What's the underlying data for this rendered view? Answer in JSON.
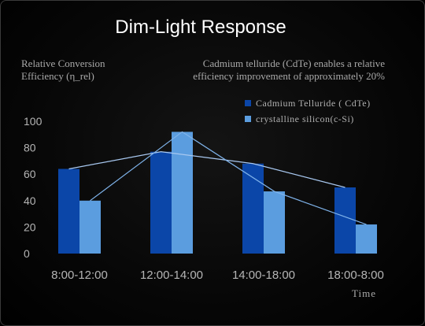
{
  "chart_data": {
    "type": "bar",
    "title": "Dim-Light Response",
    "ylabel": "Relative Conversion Efficiency (η_rel)",
    "ylabel_lines": [
      "Relative Conversion",
      "Efficiency (η_rel)"
    ],
    "xlabel": "Time",
    "annotation_lines": [
      "Cadmium telluride (CdTe) enables a relative",
      "efficiency improvement of approximately 20%"
    ],
    "categories": [
      "8:00-12:00",
      "12:00-14:00",
      "14:00-18:00",
      "18:00-8:00"
    ],
    "ylim": [
      0,
      100
    ],
    "yticks": [
      0,
      20,
      40,
      60,
      80,
      100
    ],
    "grid": false,
    "legend_position": "top-right",
    "series": [
      {
        "name": "Cadmium Telluride ( CdTe)",
        "values": [
          64,
          77,
          68,
          50
        ],
        "color": "#0b46a8"
      },
      {
        "name": "crystalline silicon(c-Si)",
        "values": [
          40,
          92,
          47,
          22
        ],
        "color": "#5b9ddf"
      }
    ],
    "overlay": "line connecting bar tops for each series"
  }
}
